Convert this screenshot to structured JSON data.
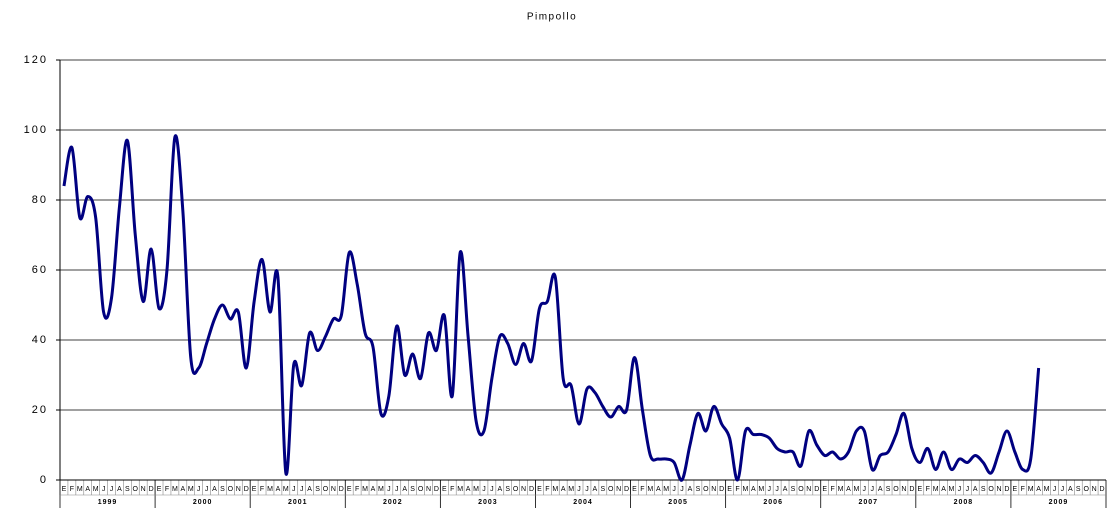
{
  "chart_data": {
    "type": "line",
    "title": "Pimpollo",
    "categories": [
      "E",
      "F",
      "M",
      "A",
      "M",
      "J",
      "J",
      "A",
      "S",
      "O",
      "N",
      "D",
      "E",
      "F",
      "M",
      "A",
      "M",
      "J",
      "J",
      "A",
      "S",
      "O",
      "N",
      "D",
      "E",
      "F",
      "M",
      "A",
      "M",
      "J",
      "J",
      "A",
      "S",
      "O",
      "N",
      "D",
      "E",
      "F",
      "M",
      "A",
      "M",
      "J",
      "J",
      "A",
      "S",
      "O",
      "N",
      "D",
      "E",
      "F",
      "M",
      "A",
      "M",
      "J",
      "J",
      "A",
      "S",
      "O",
      "N",
      "D",
      "E",
      "F",
      "M",
      "A",
      "M",
      "J",
      "J",
      "A",
      "S",
      "O",
      "N",
      "D",
      "E",
      "F",
      "M",
      "A",
      "M",
      "J",
      "J",
      "A",
      "S",
      "O",
      "N",
      "D",
      "E",
      "F",
      "M",
      "A",
      "M",
      "J",
      "J",
      "A",
      "S",
      "O",
      "N",
      "D",
      "E",
      "F",
      "M",
      "A",
      "M",
      "J",
      "J",
      "A",
      "S",
      "O",
      "N",
      "D",
      "E",
      "F",
      "M",
      "A",
      "M",
      "J",
      "J",
      "A",
      "S",
      "O",
      "N",
      "D",
      "E",
      "F",
      "M",
      "A",
      "M",
      "J",
      "J",
      "A",
      "S",
      "O",
      "N",
      "D"
    ],
    "years": [
      "1999",
      "2000",
      "2001",
      "2002",
      "2003",
      "2004",
      "2005",
      "2006",
      "2007",
      "2008",
      "2009"
    ],
    "series": [
      {
        "name": "Pimpollo",
        "color": "#000080",
        "values": [
          84,
          95,
          75,
          81,
          75,
          48,
          52,
          78,
          97,
          70,
          51,
          66,
          49,
          60,
          98,
          77,
          35,
          32,
          39,
          46,
          50,
          46,
          48,
          32,
          51,
          63,
          48,
          58,
          2,
          33,
          27,
          42,
          37,
          41,
          46,
          47,
          65,
          56,
          42,
          38,
          19,
          24,
          44,
          30,
          36,
          29,
          42,
          37,
          47,
          24,
          65,
          41,
          17,
          14,
          29,
          41,
          39,
          33,
          39,
          34,
          49,
          51,
          58,
          29,
          27,
          16,
          26,
          25,
          21,
          18,
          21,
          20,
          35,
          20,
          7,
          6,
          6,
          5,
          0,
          10,
          19,
          14,
          21,
          16,
          12,
          0,
          14,
          13,
          13,
          12,
          9,
          8,
          8,
          4,
          14,
          10,
          7,
          8,
          6,
          8,
          14,
          14,
          3,
          7,
          8,
          13,
          19,
          9,
          5,
          9,
          3,
          8,
          3,
          6,
          5,
          7,
          5,
          2,
          8,
          14,
          8,
          3,
          6,
          32,
          null,
          null,
          null,
          null,
          null,
          null,
          null,
          null
        ]
      }
    ],
    "ylim": [
      0,
      120
    ],
    "yticks": [
      0,
      20,
      40,
      60,
      80,
      100,
      120
    ],
    "grid": true
  }
}
